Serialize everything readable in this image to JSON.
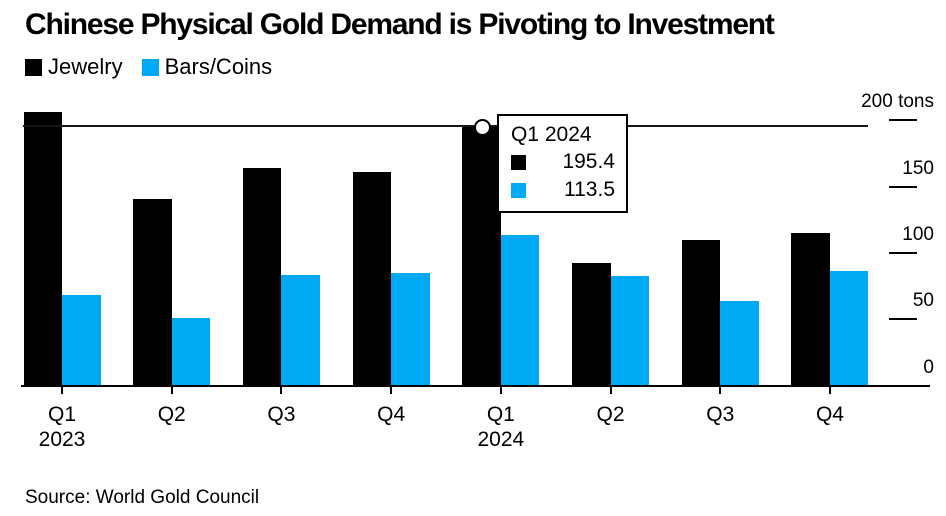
{
  "header": {
    "title": "Chinese Physical Gold Demand is Pivoting to Investment"
  },
  "legend": {
    "items": [
      {
        "label": "Jewelry",
        "color": "#000000"
      },
      {
        "label": "Bars/Coins",
        "color": "#00a9f4"
      }
    ]
  },
  "tooltip": {
    "title": "Q1 2024",
    "rows": [
      {
        "series": "Jewelry",
        "color": "#000000",
        "value": "195.4"
      },
      {
        "series": "Bars/Coins",
        "color": "#00a9f4",
        "value": "113.5"
      }
    ]
  },
  "y_axis": {
    "unit": "tons",
    "ticks": [
      {
        "value": 200,
        "label": "200 tons"
      },
      {
        "value": 150,
        "label": "150"
      },
      {
        "value": 100,
        "label": "100"
      },
      {
        "value": 50,
        "label": "50"
      },
      {
        "value": 0,
        "label": "0"
      }
    ]
  },
  "x_axis": {
    "labels": [
      "Q1",
      "Q2",
      "Q3",
      "Q4",
      "Q1",
      "Q2",
      "Q3",
      "Q4"
    ],
    "year_labels": [
      {
        "index": 0,
        "label": "2023"
      },
      {
        "index": 4,
        "label": "2024"
      }
    ]
  },
  "footer": {
    "source": "Source: World Gold Council"
  },
  "chart_data": {
    "type": "bar",
    "title": "Chinese Physical Gold Demand is Pivoting to Investment",
    "categories": [
      "Q1 2023",
      "Q2 2023",
      "Q3 2023",
      "Q4 2023",
      "Q1 2024",
      "Q2 2024",
      "Q3 2024",
      "Q4 2024"
    ],
    "series": [
      {
        "name": "Jewelry",
        "color": "#000000",
        "values": [
          206,
          141,
          164,
          161,
          195.4,
          92.5,
          109.5,
          115
        ]
      },
      {
        "name": "Bars/Coins",
        "color": "#00a9f4",
        "values": [
          68,
          51,
          83,
          85,
          113.5,
          82.5,
          64,
          86
        ]
      }
    ],
    "ylabel": "tons",
    "ylim": [
      0,
      220
    ],
    "grid": false,
    "legend_position": "top-left",
    "highlight": {
      "category": "Q1 2024",
      "crosshair_value": 195.4,
      "tooltip_values": {
        "Jewelry": 195.4,
        "Bars/Coins": 113.5
      }
    }
  }
}
